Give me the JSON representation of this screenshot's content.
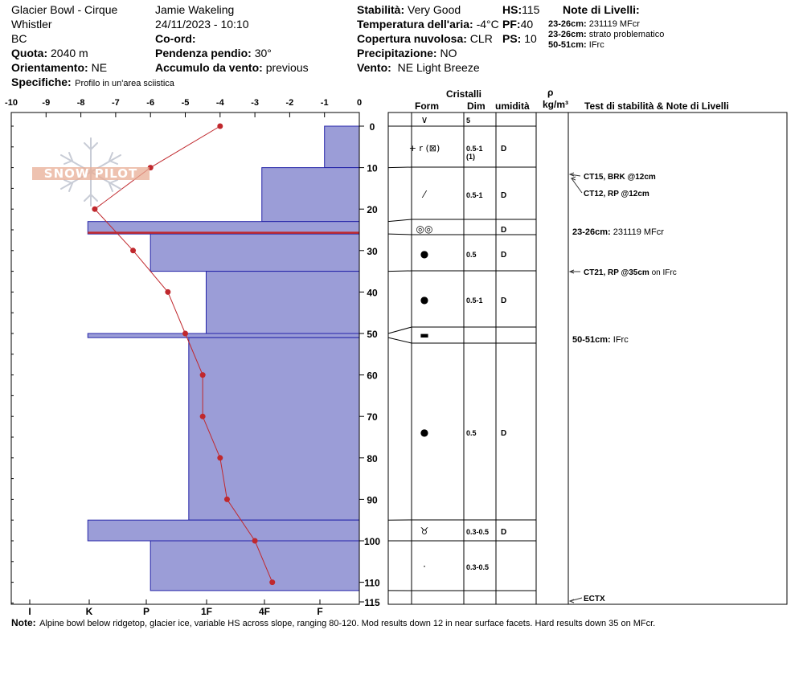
{
  "header": {
    "location": "Glacier Bowl - Cirque",
    "region": "Whistler",
    "province": "BC",
    "quota_label": "Quota:",
    "quota_value": "2040 m",
    "orient_label": "Orientamento:",
    "orient_value": "NE",
    "observer": "Jamie  Wakeling",
    "datetime": "24/11/2023 - 10:10",
    "coord_label": "Co-ord:",
    "slope_label": "Pendenza pendio:",
    "slope_value": "30°",
    "wind_acc_label": "Accumulo da vento:",
    "wind_acc_value": "previous",
    "spec_label": "Specifiche:",
    "spec_value": "Profilo in un'area sciistica",
    "stability_label": "Stabilità:",
    "stability_value": "Very Good",
    "air_temp_label": "Temperatura dell'aria:",
    "air_temp_value": "-4°C",
    "cloud_label": "Copertura nuvolosa:",
    "cloud_value": "CLR",
    "precip_label": "Precipitazione:",
    "precip_value": "NO",
    "wind_label": "Vento:",
    "wind_value": "NE Light Breeze",
    "hs_label": "HS:",
    "hs_value": "115",
    "pf_label": "PF:",
    "pf_value": "40",
    "ps_label": "PS:",
    "ps_value": "10",
    "layer_notes_title": "Note di Livelli:",
    "layer_notes": [
      {
        "range": "23-26cm:",
        "text": "231119 MFcr"
      },
      {
        "range": "23-26cm:",
        "text": "strato problematico"
      },
      {
        "range": "50-51cm:",
        "text": "IFrc"
      }
    ]
  },
  "logo_text": "SNOW PILOT",
  "columns": {
    "crystals": "Cristalli",
    "form": "Form",
    "size": "Dim",
    "moisture": "umidità",
    "density_sym": "ρ",
    "density_unit": "kg/m³",
    "tests": "Test di stabilità & Note di Livelli"
  },
  "chart_data": {
    "type": "snow-profile",
    "temperature_axis": {
      "ticks": [
        -10,
        -9,
        -8,
        -7,
        -6,
        -5,
        -4,
        -3,
        -2,
        -1,
        0
      ],
      "labels": [
        "-10",
        "-9",
        "-8",
        "-7",
        "-6",
        "-5",
        "-4",
        "-3",
        "-2",
        "-1",
        "0"
      ]
    },
    "hardness_axis": {
      "labels": [
        "I",
        "K",
        "P",
        "1F",
        "4F",
        "F"
      ]
    },
    "depth_axis": {
      "ticks": [
        0,
        10,
        20,
        30,
        40,
        50,
        60,
        70,
        80,
        90,
        100,
        110,
        115
      ],
      "max": 115
    },
    "hardness_layers": [
      {
        "top": 0,
        "bottom": 10,
        "temp_scale": -1
      },
      {
        "top": 10,
        "bottom": 23,
        "temp_scale": -2.8
      },
      {
        "top": 23,
        "bottom": 26,
        "temp_scale": -7.8
      },
      {
        "top": 26,
        "bottom": 35,
        "temp_scale": -6
      },
      {
        "top": 35,
        "bottom": 50,
        "temp_scale": -4.4
      },
      {
        "top": 50,
        "bottom": 51,
        "temp_scale": -7.8
      },
      {
        "top": 51,
        "bottom": 95,
        "temp_scale": -4.9
      },
      {
        "top": 95,
        "bottom": 100,
        "temp_scale": -7.8
      },
      {
        "top": 100,
        "bottom": 112,
        "temp_scale": -6
      }
    ],
    "problem_layer_depth": 26,
    "temperature_profile": [
      {
        "depth": 0,
        "temp": -4
      },
      {
        "depth": 10,
        "temp": -6
      },
      {
        "depth": 20,
        "temp": -7.6
      },
      {
        "depth": 30,
        "temp": -6.5
      },
      {
        "depth": 40,
        "temp": -5.5
      },
      {
        "depth": 50,
        "temp": -5
      },
      {
        "depth": 60,
        "temp": -4.5
      },
      {
        "depth": 70,
        "temp": -4.5
      },
      {
        "depth": 80,
        "temp": -4
      },
      {
        "depth": 90,
        "temp": -3.8
      },
      {
        "depth": 100,
        "temp": -3
      },
      {
        "depth": 110,
        "temp": -2.5
      }
    ],
    "crystal_layers": [
      {
        "top": 0,
        "bottom": 0,
        "form": "∨",
        "size": "5",
        "moisture": ""
      },
      {
        "top": 0,
        "bottom": 10,
        "form": "+ r (⊠)",
        "size": "0.5-1",
        "size2": "(1)",
        "moisture": "D"
      },
      {
        "top": 10,
        "bottom": 23,
        "form": "⁄",
        "size": "0.5-1",
        "moisture": "D"
      },
      {
        "top": 23,
        "bottom": 26,
        "form": "◎◎",
        "size": "",
        "moisture": "D"
      },
      {
        "top": 26,
        "bottom": 35,
        "form": "●",
        "size": "0.5",
        "moisture": "D"
      },
      {
        "top": 35,
        "bottom": 50,
        "form": "●",
        "size": "0.5-1",
        "moisture": "D"
      },
      {
        "top": 50,
        "bottom": 51,
        "form": "▬",
        "size": "",
        "moisture": ""
      },
      {
        "top": 51,
        "bottom": 95,
        "form": "●",
        "size": "0.5",
        "moisture": "D"
      },
      {
        "top": 95,
        "bottom": 100,
        "form": "♉",
        "size": "0.3-0.5",
        "moisture": "D"
      },
      {
        "top": 100,
        "bottom": 112,
        "form": "·",
        "size": "0.3-0.5",
        "moisture": ""
      }
    ],
    "tests": [
      {
        "depth": 12,
        "bold": "CT15, BRK @12cm",
        "rest": ""
      },
      {
        "depth": 12,
        "bold": "CT12, RP @12cm",
        "rest": ""
      },
      {
        "depth": 35,
        "bold": "CT21, RP @35cm",
        "rest": " on IFrc"
      },
      {
        "depth": 115,
        "bold": "ECTX",
        "rest": ""
      }
    ],
    "layer_notes_right": [
      {
        "depth": 25,
        "bold": "23-26cm:",
        "rest": " 231119 MFcr"
      },
      {
        "depth": 51,
        "bold": "50-51cm:",
        "rest": " IFrc"
      }
    ]
  },
  "footer": {
    "note_label": "Note:",
    "note_text": "Alpine bowl below ridgetop, glacier ice, variable HS across slope, ranging 80-120. Mod results down 12 in near surface facets. Hard results down 35 on MFcr."
  }
}
